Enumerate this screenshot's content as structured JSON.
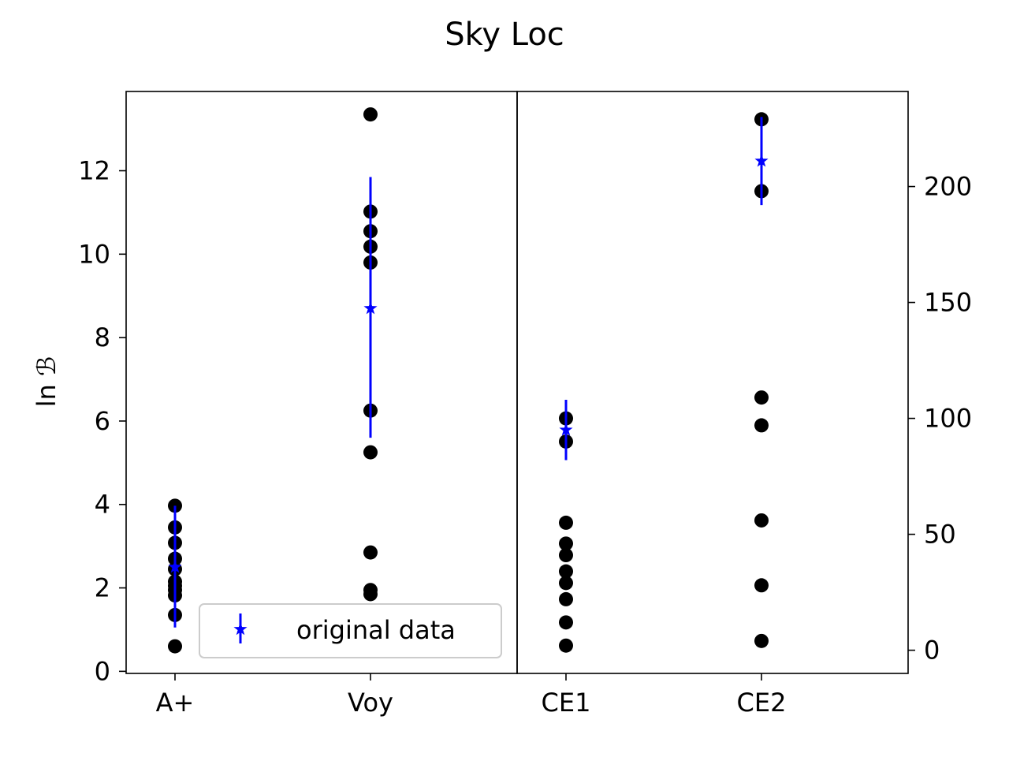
{
  "chart_data": {
    "type": "scatter",
    "title": "Sky Loc",
    "ylabel": "ln ℬ",
    "legend": {
      "label": "original data",
      "placement": "lower-right of left panel"
    },
    "colors": {
      "points": "#000000",
      "summary": "#0000ff"
    },
    "categories": [
      "A+",
      "Voy",
      "CE1",
      "CE2"
    ],
    "left_axis": {
      "ylim": [
        -0.05,
        13.9
      ],
      "ticks": [
        0,
        2,
        4,
        6,
        8,
        10,
        12
      ],
      "tick_labels": [
        "0",
        "2",
        "4",
        "6",
        "8",
        "10",
        "12"
      ]
    },
    "right_axis": {
      "ylim": [
        -10,
        241
      ],
      "ticks": [
        0,
        50,
        100,
        150,
        200
      ],
      "tick_labels": [
        "0",
        "50",
        "100",
        "150",
        "200"
      ]
    },
    "panels": [
      {
        "name": "left",
        "axis": "left",
        "groups": [
          {
            "category": "A+",
            "points": [
              0.6,
              1.35,
              1.82,
              1.95,
              2.05,
              2.15,
              2.45,
              2.7,
              3.08,
              3.45,
              3.97
            ],
            "summary": {
              "mean": 2.5,
              "err_low": 1.05,
              "err_high": 3.97
            }
          },
          {
            "category": "Voy",
            "points": [
              1.85,
              1.95,
              2.85,
              5.25,
              6.25,
              9.8,
              10.18,
              10.55,
              11.02,
              13.35
            ],
            "summary": {
              "mean": 8.7,
              "err_low": 5.6,
              "err_high": 11.85
            }
          }
        ]
      },
      {
        "name": "right",
        "axis": "right",
        "groups": [
          {
            "category": "CE1",
            "points": [
              2,
              12,
              22,
              29,
              34,
              41,
              46,
              55,
              90,
              100
            ],
            "summary": {
              "mean": 95,
              "err_low": 82,
              "err_high": 108
            }
          },
          {
            "category": "CE2",
            "points": [
              4,
              28,
              56,
              97,
              109,
              198,
              229
            ],
            "summary": {
              "mean": 211,
              "err_low": 192,
              "err_high": 230
            }
          }
        ]
      }
    ]
  }
}
